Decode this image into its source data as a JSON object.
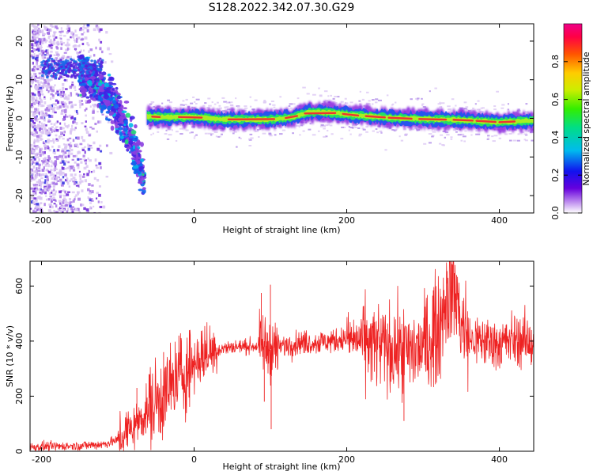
{
  "title": "S128.2022.342.07.30.G29",
  "colors": {
    "snr_line": "#ee2222",
    "spectrum_core": "#ee3333",
    "spectrum_mid": "#22dd66",
    "spectrum_outer": "#2255ee",
    "spectrum_halo": "#8822dd"
  },
  "chart_data": [
    {
      "type": "heatmap",
      "xlabel": "Height of straight line (km)",
      "ylabel": "Frequency (Hz)",
      "xlim": [
        -215,
        445
      ],
      "ylim": [
        -24.5,
        24.5
      ],
      "xticks": [
        -200,
        0,
        200,
        400
      ],
      "yticks": [
        -20,
        -10,
        0,
        10,
        20
      ],
      "colorbar": {
        "label": "Normalized spectral amplitude",
        "range": [
          0.0,
          1.0
        ],
        "ticks": [
          0.0,
          0.2,
          0.4,
          0.6,
          0.8
        ],
        "colormap": "rainbow (violet → blue → cyan → green → yellow → red → magenta)"
      },
      "ridge_frequency_hz": [
        {
          "x": -60,
          "f": 0.5
        },
        {
          "x": -40,
          "f": 0.3
        },
        {
          "x": 0,
          "f": 0.4
        },
        {
          "x": 30,
          "f": -0.2
        },
        {
          "x": 50,
          "f": -0.3
        },
        {
          "x": 100,
          "f": -0.3
        },
        {
          "x": 130,
          "f": 0.3
        },
        {
          "x": 150,
          "f": 1.6
        },
        {
          "x": 180,
          "f": 1.5
        },
        {
          "x": 210,
          "f": 0.8
        },
        {
          "x": 260,
          "f": 0.1
        },
        {
          "x": 300,
          "f": -0.2
        },
        {
          "x": 350,
          "f": -0.4
        },
        {
          "x": 400,
          "f": -1.0
        },
        {
          "x": 445,
          "f": -0.6
        }
      ],
      "scatter_branches_hz": [
        {
          "x": -150,
          "f": 11.5
        },
        {
          "x": -130,
          "f": 9.0
        },
        {
          "x": -110,
          "f": 5.0
        },
        {
          "x": -95,
          "f": 0.0
        },
        {
          "x": -80,
          "f": -7.0
        },
        {
          "x": -65,
          "f": -16.0
        }
      ]
    },
    {
      "type": "line",
      "xlabel": "Height of straight line (km)",
      "ylabel": "SNR (10 * v/v)",
      "xlim": [
        -215,
        445
      ],
      "ylim": [
        0,
        690
      ],
      "xticks": [
        -200,
        0,
        200,
        400
      ],
      "yticks": [
        0,
        200,
        400,
        600
      ],
      "series": [
        {
          "name": "",
          "x": [
            -215,
            -150,
            -120,
            -100,
            -80,
            -60,
            -40,
            -20,
            0,
            10,
            20,
            40,
            60,
            80,
            90,
            100,
            120,
            140,
            160,
            180,
            200,
            220,
            240,
            260,
            280,
            300,
            320,
            330,
            340,
            350,
            360,
            380,
            400,
            420,
            445
          ],
          "y": [
            15,
            20,
            25,
            40,
            90,
            150,
            200,
            270,
            320,
            345,
            360,
            375,
            380,
            382,
            385,
            370,
            385,
            395,
            395,
            400,
            410,
            400,
            380,
            370,
            360,
            375,
            450,
            560,
            600,
            470,
            400,
            400,
            390,
            405,
            395
          ]
        }
      ],
      "annotations_extremes": [
        {
          "x": 90,
          "y_max": 575,
          "y_min": 180
        },
        {
          "x": 100,
          "y_max": 605,
          "y_min": 80
        },
        {
          "x": 340,
          "y_max": 680
        },
        {
          "x": 275,
          "y_min": 110
        }
      ]
    }
  ]
}
